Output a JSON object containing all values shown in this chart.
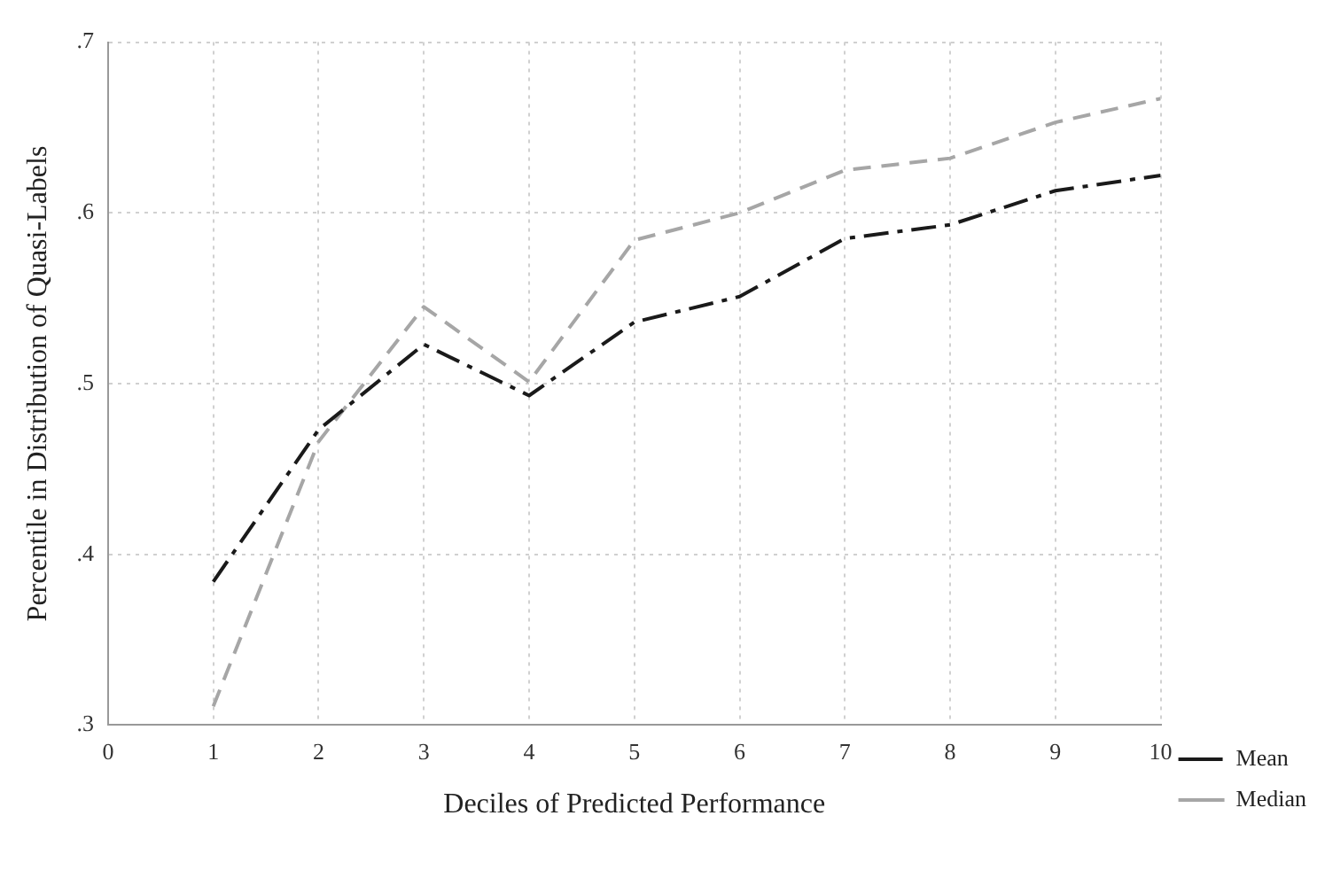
{
  "chart_data": {
    "type": "line",
    "xlabel": "Deciles of Predicted Performance",
    "ylabel": "Percentile in Distribution of Quasi-Labels",
    "x": [
      1,
      2,
      3,
      4,
      5,
      6,
      7,
      8,
      9,
      10
    ],
    "series": [
      {
        "name": "Mean",
        "color": "#1a1a1a",
        "line_style": "dashed",
        "values": [
          0.384,
          0.473,
          0.523,
          0.493,
          0.536,
          0.551,
          0.585,
          0.593,
          0.613,
          0.622
        ]
      },
      {
        "name": "Median",
        "color": "#a6a6a6",
        "line_style": "dashed",
        "values": [
          0.311,
          0.466,
          0.545,
          0.501,
          0.584,
          0.6,
          0.625,
          0.632,
          0.653,
          0.667
        ]
      }
    ],
    "xlim": [
      0,
      10
    ],
    "xticks": [
      0,
      1,
      2,
      3,
      4,
      5,
      6,
      7,
      8,
      9,
      10
    ],
    "ylim": [
      0.3,
      0.7
    ],
    "yticks": [
      {
        "value": 0.3,
        "label": ".3"
      },
      {
        "value": 0.4,
        "label": ".4"
      },
      {
        "value": 0.5,
        "label": ".5"
      },
      {
        "value": 0.6,
        "label": ".6"
      },
      {
        "value": 0.7,
        "label": ".7"
      }
    ],
    "grid": true,
    "legend": "bottom right",
    "marker": "none"
  }
}
